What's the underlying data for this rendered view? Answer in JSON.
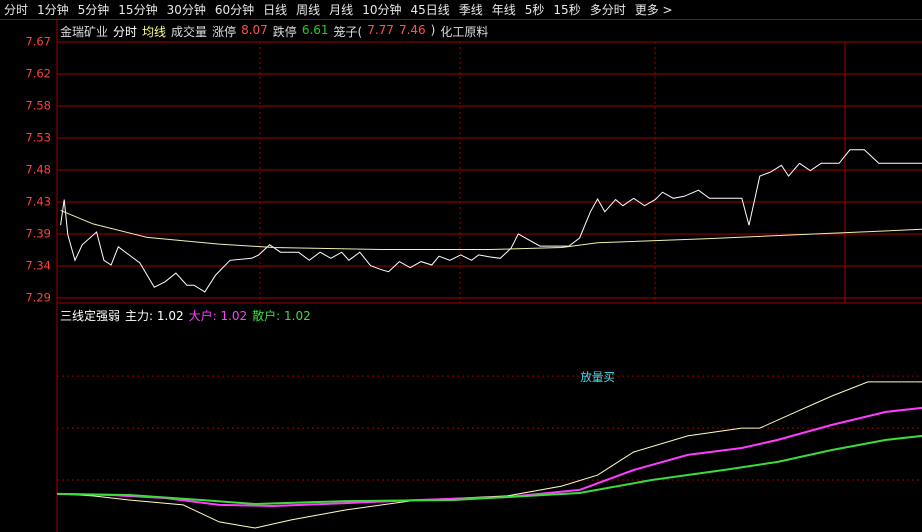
{
  "toolbar": {
    "items": [
      "分时",
      "1分钟",
      "5分钟",
      "15分钟",
      "30分钟",
      "60分钟",
      "日线",
      "周线",
      "月线",
      "10分钟",
      "45日线",
      "季线",
      "年线",
      "5秒",
      "15秒",
      "多分时",
      "更多 >"
    ]
  },
  "header": {
    "items": [
      {
        "text": "金瑞矿业",
        "color": "#dddddd"
      },
      {
        "text": "分时",
        "color": "#ffffff"
      },
      {
        "text": "均线",
        "color": "#ffff88"
      },
      {
        "text": "成交量",
        "color": "#dddddd"
      },
      {
        "text": "涨停",
        "color": "#dddddd"
      },
      {
        "text": "8.07",
        "color": "#ff5050"
      },
      {
        "text": "跌停",
        "color": "#dddddd"
      },
      {
        "text": "6.61",
        "color": "#20d020"
      },
      {
        "text": "笼子(",
        "color": "#dddddd"
      },
      {
        "text": "7.77",
        "color": "#ff5050"
      },
      {
        "text": "7.46",
        "color": "#ff5050"
      },
      {
        "text": ")",
        "color": "#dddddd"
      },
      {
        "text": "化工原料",
        "color": "#dddddd"
      }
    ]
  },
  "chart_data": [
    {
      "type": "line",
      "xlim": [
        0,
        240
      ],
      "ylim": [
        7.29,
        7.67
      ],
      "yticks": [
        7.29,
        {
          "value": 7.3375,
          "label": "7.34"
        },
        {
          "value": 7.385,
          "label": "7.39"
        },
        {
          "value": 7.4325,
          "label": "7.43"
        },
        7.48,
        {
          "value": 7.5275,
          "label": "7.53"
        },
        {
          "value": 7.575,
          "label": "7.58"
        },
        {
          "value": 7.6225,
          "label": "7.62"
        },
        7.67
      ],
      "grid": true,
      "tick_color": "#ff4040",
      "grid_color": "#a00000",
      "series": [
        {
          "name": "分时",
          "color": "#ffffff",
          "x": [
            1,
            2,
            3,
            5,
            7,
            11,
            13,
            15,
            17,
            20,
            23,
            27,
            30,
            33,
            36,
            38,
            41,
            44,
            48,
            54,
            56,
            59,
            62,
            67,
            70,
            73,
            76,
            79,
            81,
            84,
            87,
            90,
            92,
            95,
            98,
            101,
            104,
            106,
            109,
            112,
            115,
            117,
            120,
            123,
            126,
            128,
            131,
            134,
            137,
            140,
            142,
            145,
            148,
            150,
            152,
            155,
            157,
            160,
            163,
            166,
            168,
            171,
            174,
            178,
            181,
            184,
            190,
            192,
            195,
            198,
            201,
            203,
            206,
            209,
            212,
            217,
            220,
            224,
            228,
            240
          ],
          "values": [
            7.398,
            7.436,
            7.384,
            7.346,
            7.369,
            7.388,
            7.346,
            7.339,
            7.366,
            7.354,
            7.342,
            7.306,
            7.314,
            7.327,
            7.309,
            7.309,
            7.299,
            7.324,
            7.346,
            7.349,
            7.354,
            7.369,
            7.358,
            7.358,
            7.346,
            7.358,
            7.349,
            7.358,
            7.346,
            7.358,
            7.338,
            7.332,
            7.329,
            7.344,
            7.335,
            7.344,
            7.339,
            7.352,
            7.346,
            7.354,
            7.346,
            7.354,
            7.351,
            7.349,
            7.364,
            7.385,
            7.376,
            7.367,
            7.367,
            7.367,
            7.367,
            7.379,
            7.418,
            7.437,
            7.418,
            7.436,
            7.427,
            7.438,
            7.427,
            7.436,
            7.447,
            7.438,
            7.441,
            7.45,
            7.438,
            7.438,
            7.438,
            7.398,
            7.471,
            7.477,
            7.487,
            7.471,
            7.49,
            7.479,
            7.49,
            7.49,
            7.51,
            7.51,
            7.49,
            7.49
          ]
        },
        {
          "name": "均线",
          "color": "#f0f0b0",
          "x": [
            1,
            10,
            25,
            45,
            60,
            90,
            120,
            140,
            150,
            180,
            210,
            240
          ],
          "values": [
            7.42,
            7.4,
            7.38,
            7.37,
            7.365,
            7.362,
            7.362,
            7.365,
            7.372,
            7.378,
            7.385,
            7.392
          ]
        }
      ]
    },
    {
      "type": "line",
      "title": "三线定强弱",
      "xlim": [
        0,
        240
      ],
      "ylim": [
        0,
        100
      ],
      "grid_color": "#a00000",
      "grid_y": [
        23.2,
        46.4,
        69.6
      ],
      "legend": [
        {
          "text": "主力: 1.02",
          "color": "#ffffff"
        },
        {
          "text": "大户: 1.02",
          "color": "#ff3cff"
        },
        {
          "text": "散户: 1.02",
          "color": "#3cdc3c"
        }
      ],
      "annotation": {
        "text": "放量买",
        "x": 150,
        "y": 69,
        "color": "#40e0f0"
      },
      "series": [
        {
          "name": "主力",
          "color": "#ffffc0",
          "width": 1,
          "x": [
            0,
            10,
            20,
            35,
            45,
            55,
            65,
            80,
            100,
            125,
            140,
            150,
            160,
            175,
            190,
            195,
            205,
            215,
            225,
            240
          ],
          "values": [
            17,
            16.1,
            14.3,
            12.1,
            4.5,
            1.8,
            5.4,
            9.8,
            14.3,
            16.1,
            20.5,
            25.4,
            35.7,
            42.9,
            46.4,
            46.4,
            53.6,
            60.7,
            67,
            67
          ]
        },
        {
          "name": "大户",
          "color": "#ff3cff",
          "width": 2,
          "x": [
            0,
            15,
            30,
            45,
            60,
            80,
            100,
            125,
            145,
            160,
            175,
            190,
            200,
            215,
            230,
            240
          ],
          "values": [
            17,
            16.5,
            15.2,
            12.1,
            11.6,
            12.9,
            14.3,
            15.6,
            18.8,
            27.7,
            34.4,
            37.5,
            41.1,
            47.8,
            53.6,
            55.4
          ]
        },
        {
          "name": "散户",
          "color": "#3cdc3c",
          "width": 2,
          "x": [
            0,
            20,
            40,
            55,
            80,
            110,
            145,
            165,
            185,
            200,
            215,
            230,
            240
          ],
          "values": [
            17,
            16.5,
            14.3,
            12.5,
            13.8,
            14.3,
            17.4,
            23.2,
            27.7,
            31.3,
            36.6,
            41.1,
            42.9
          ]
        }
      ]
    }
  ]
}
